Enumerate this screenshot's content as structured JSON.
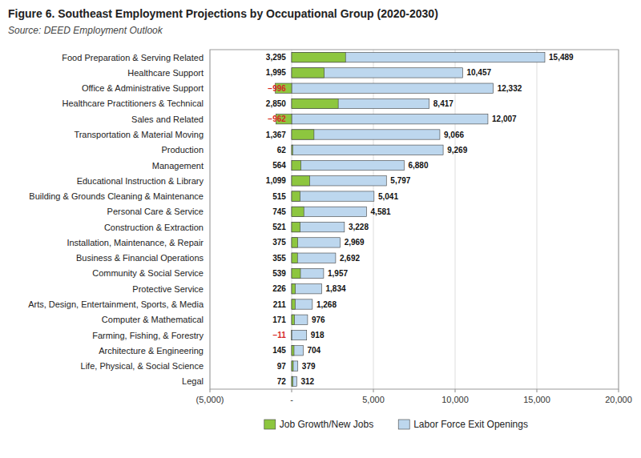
{
  "chart_data": {
    "type": "bar",
    "orientation": "horizontal",
    "title": "Figure 6. Southeast Employment Projections by Occupational Group (2020-2030)",
    "subtitle": "Source: DEED Employment Outlook",
    "categories": [
      "Food Preparation & Serving Related",
      "Healthcare Support",
      "Office & Administrative Support",
      "Healthcare Practitioners & Technical",
      "Sales and Related",
      "Transportation & Material Moving",
      "Production",
      "Management",
      "Educational Instruction & Library",
      "Building & Grounds Cleaning & Maintenance",
      "Personal Care & Service",
      "Construction & Extraction",
      "Installation, Maintenance, & Repair",
      "Business & Financial Operations",
      "Community & Social Service",
      "Protective Service",
      "Arts, Design, Entertainment, Sports, & Media",
      "Computer & Mathematical",
      "Farming, Fishing, & Forestry",
      "Architecture & Engineering",
      "Life, Physical, & Social Science",
      "Legal"
    ],
    "series": [
      {
        "name": "Job Growth/New Jobs",
        "color": "#8DC63F",
        "values": [
          3295,
          1995,
          -996,
          2850,
          -962,
          1367,
          62,
          564,
          1099,
          515,
          745,
          521,
          375,
          355,
          539,
          226,
          211,
          171,
          -11,
          145,
          97,
          72
        ],
        "value_labels": [
          "3,295",
          "1,995",
          "−996",
          "2,850",
          "−962",
          "1,367",
          "62",
          "564",
          "1,099",
          "515",
          "745",
          "521",
          "375",
          "355",
          "539",
          "226",
          "211",
          "171",
          "−11",
          "145",
          "97",
          "72"
        ]
      },
      {
        "name": "Labor Force Exit Openings",
        "color": "#BDD7EE",
        "values": [
          15489,
          10457,
          12332,
          8417,
          12007,
          9066,
          9269,
          6880,
          5797,
          5041,
          4581,
          3228,
          2969,
          2692,
          1957,
          1834,
          1268,
          976,
          918,
          704,
          379,
          312
        ],
        "value_labels": [
          "15,489",
          "10,457",
          "12,332",
          "8,417",
          "12,007",
          "9,066",
          "9,269",
          "6,880",
          "5,797",
          "5,041",
          "4,581",
          "3,228",
          "2,969",
          "2,692",
          "1,957",
          "1,834",
          "1,268",
          "976",
          "918",
          "704",
          "379",
          "312"
        ]
      }
    ],
    "xlim": [
      -5000,
      20000
    ],
    "xticks": [
      {
        "value": -5000,
        "label": "(5,000)"
      },
      {
        "value": 0,
        "label": "-"
      },
      {
        "value": 5000,
        "label": "5,000"
      },
      {
        "value": 10000,
        "label": "10,000"
      },
      {
        "value": 15000,
        "label": "15,000"
      },
      {
        "value": 20000,
        "label": "20,000"
      }
    ],
    "grid": true,
    "legend": "bottom",
    "data_labels": true
  }
}
